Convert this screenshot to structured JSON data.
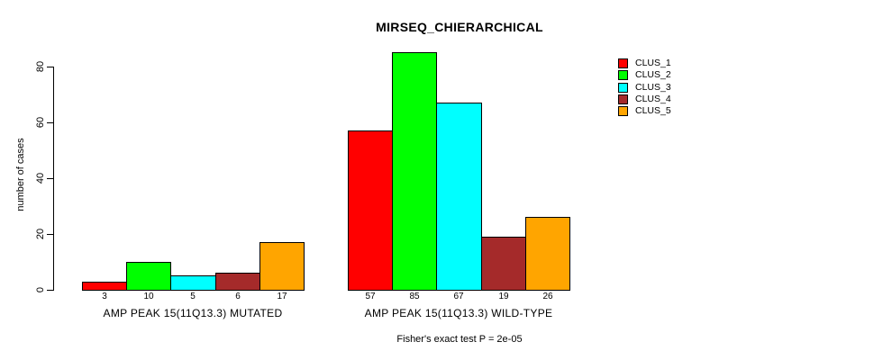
{
  "title": "MIRSEQ_CHIERARCHICAL",
  "footnote": "Fisher's exact test P = 2e-05",
  "chart_data": {
    "type": "bar",
    "title": "MIRSEQ_CHIERARCHICAL",
    "xlabel": "",
    "ylabel": "number of cases",
    "ylim": [
      0,
      85
    ],
    "yticks": [
      0,
      20,
      40,
      60,
      80
    ],
    "grid": false,
    "legend_position": "top-right",
    "categories": [
      "AMP PEAK 15(11Q13.3) MUTATED",
      "AMP PEAK 15(11Q13.3) WILD-TYPE"
    ],
    "series": [
      {
        "name": "CLUS_1",
        "color": "#FF0000",
        "values": [
          3,
          57
        ]
      },
      {
        "name": "CLUS_2",
        "color": "#00FF00",
        "values": [
          10,
          85
        ]
      },
      {
        "name": "CLUS_3",
        "color": "#00FFFF",
        "values": [
          5,
          67
        ]
      },
      {
        "name": "CLUS_4",
        "color": "#A52A2A",
        "values": [
          6,
          19
        ]
      },
      {
        "name": "CLUS_5",
        "color": "#FFA500",
        "values": [
          17,
          26
        ]
      }
    ],
    "bar_value_labels": [
      [
        3,
        10,
        5,
        6,
        17
      ],
      [
        57,
        85,
        67,
        19,
        26
      ]
    ],
    "annotation": "Fisher's exact test P = 2e-05"
  }
}
